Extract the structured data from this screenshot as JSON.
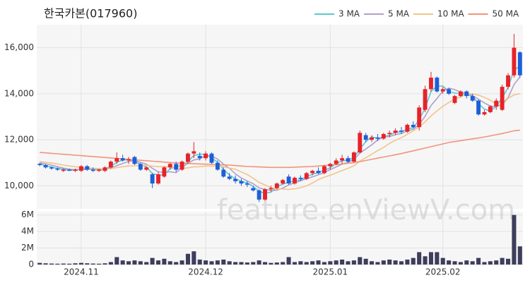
{
  "chart_data": {
    "type": "candlestick",
    "title": "한국카본(017960)",
    "watermark": "feature.enViewV.com",
    "legend": "top-right",
    "up_color": "#e8222a",
    "down_color": "#1d5fd9",
    "volume_color": "#3d3d5c",
    "open": [
      10950,
      10900,
      10800,
      10750,
      10650,
      10700,
      10650,
      10650,
      10850,
      10700,
      10650,
      10650,
      10800,
      11050,
      11200,
      11100,
      11250,
      10950,
      10700,
      10500,
      10100,
      10400,
      10800,
      10950,
      10700,
      11050,
      11400,
      11300,
      11200,
      11400,
      11000,
      10700,
      10400,
      10300,
      10200,
      10100,
      9900,
      9800,
      9400,
      9850,
      9900,
      10100,
      10400,
      10100,
      10350,
      10300,
      10550,
      10650,
      10550,
      10850,
      10950,
      11100,
      11200,
      11050,
      11450,
      12200,
      12000,
      12100,
      12050,
      12250,
      12300,
      12400,
      12350,
      12650,
      12550,
      13300,
      14200,
      14700,
      14100,
      14200,
      13600,
      13900,
      14100,
      13900,
      13700,
      13100,
      13200,
      13450,
      13300,
      14300,
      14800,
      15800
    ],
    "high": [
      11000,
      10950,
      10850,
      10800,
      10750,
      10750,
      10750,
      10900,
      10900,
      10800,
      10750,
      10850,
      11100,
      11450,
      11350,
      11250,
      11300,
      11000,
      10850,
      10550,
      10600,
      10850,
      11000,
      11050,
      11100,
      11450,
      11900,
      11450,
      11500,
      11450,
      11100,
      10800,
      10550,
      10450,
      10300,
      10200,
      10000,
      9850,
      9900,
      10000,
      10150,
      10300,
      10500,
      10400,
      10450,
      10600,
      10700,
      10800,
      10900,
      11000,
      11200,
      11350,
      11300,
      11500,
      12400,
      12300,
      12200,
      12250,
      12300,
      12400,
      12500,
      12550,
      12700,
      12800,
      13500,
      14350,
      14950,
      14750,
      14300,
      14250,
      13950,
      14150,
      14150,
      14000,
      13750,
      13300,
      13500,
      13800,
      14400,
      14900,
      16600,
      15850
    ],
    "low": [
      10850,
      10750,
      10700,
      10650,
      10600,
      10650,
      10600,
      10600,
      10650,
      10600,
      10600,
      10600,
      10750,
      10950,
      11050,
      10950,
      10900,
      10650,
      10650,
      9900,
      10050,
      10350,
      10700,
      10600,
      10650,
      10950,
      11200,
      11100,
      11100,
      10950,
      10650,
      10350,
      10250,
      10100,
      10000,
      9950,
      9750,
      9300,
      9350,
      9750,
      9850,
      10050,
      10050,
      10050,
      10200,
      10250,
      10450,
      10500,
      10500,
      10700,
      10900,
      10950,
      11000,
      11000,
      11400,
      11900,
      11900,
      11950,
      12000,
      12100,
      12200,
      12250,
      12300,
      12500,
      12400,
      13200,
      14100,
      14050,
      14000,
      13950,
      13550,
      13850,
      13800,
      13650,
      13050,
      13050,
      13150,
      13300,
      13250,
      14200,
      14700,
      14700
    ],
    "close": [
      10900,
      10800,
      10750,
      10700,
      10700,
      10650,
      10700,
      10850,
      10700,
      10650,
      10700,
      10800,
      11050,
      11200,
      11100,
      11150,
      10950,
      10700,
      10800,
      10100,
      10500,
      10800,
      10950,
      10700,
      11050,
      11400,
      11500,
      11200,
      11400,
      11000,
      10700,
      10400,
      10300,
      10200,
      10100,
      10050,
      9800,
      9400,
      9850,
      9900,
      10100,
      10250,
      10100,
      10350,
      10300,
      10550,
      10650,
      10550,
      10850,
      10950,
      11100,
      11200,
      11050,
      11450,
      12300,
      12000,
      12100,
      12050,
      12250,
      12300,
      12400,
      12350,
      12650,
      12550,
      13400,
      14200,
      14700,
      14100,
      14200,
      14000,
      13900,
      14100,
      13900,
      13700,
      13100,
      13200,
      13450,
      13700,
      14300,
      14800,
      16000,
      14800
    ],
    "volume": [
      200000,
      150000,
      120000,
      100000,
      120000,
      100000,
      150000,
      200000,
      150000,
      120000,
      100000,
      150000,
      300000,
      900000,
      500000,
      400000,
      500000,
      400000,
      300000,
      800000,
      500000,
      700000,
      400000,
      300000,
      500000,
      1300000,
      1600000,
      600000,
      500000,
      400000,
      500000,
      600000,
      400000,
      300000,
      300000,
      250000,
      300000,
      500000,
      300000,
      200000,
      250000,
      300000,
      900000,
      300000,
      400000,
      300000,
      400000,
      500000,
      300000,
      400000,
      500000,
      600000,
      400000,
      500000,
      900000,
      700000,
      400000,
      300000,
      500000,
      600000,
      500000,
      400000,
      600000,
      800000,
      1500000,
      1000000,
      1500000,
      1500000,
      800000,
      500000,
      400000,
      300000,
      500000,
      400000,
      800000,
      300000,
      400000,
      500000,
      800000,
      700000,
      6000000,
      2200000
    ],
    "ma": [
      {
        "name": "3 MA",
        "color": "#5bc8d0",
        "values": [
          10950,
          10870,
          10820,
          10750,
          10720,
          10680,
          10680,
          10730,
          10750,
          10730,
          10680,
          10720,
          10850,
          11020,
          11120,
          11150,
          11070,
          10930,
          10820,
          10530,
          10470,
          10470,
          10750,
          10820,
          10900,
          11050,
          11320,
          11370,
          11370,
          11200,
          11030,
          10700,
          10470,
          10300,
          10200,
          10120,
          9980,
          9750,
          9680,
          9720,
          9950,
          10080,
          10150,
          10230,
          10250,
          10400,
          10500,
          10580,
          10680,
          10780,
          10970,
          11080,
          11120,
          11230,
          11600,
          11920,
          12130,
          12050,
          12130,
          12200,
          12320,
          12350,
          12470,
          12520,
          12870,
          13380,
          14100,
          14330,
          14330,
          14100,
          14030,
          14000,
          13970,
          13900,
          13570,
          13330,
          13250,
          13450,
          13820,
          14270,
          15030,
          15200
        ]
      },
      {
        "name": "5 MA",
        "color": "#b09fc9",
        "values": [
          11000,
          10950,
          10900,
          10830,
          10770,
          10720,
          10700,
          10700,
          10720,
          10730,
          10720,
          10740,
          10780,
          10880,
          10970,
          11060,
          11090,
          11020,
          10940,
          10760,
          10610,
          10580,
          10610,
          10570,
          10800,
          10980,
          11120,
          11170,
          11310,
          11300,
          11160,
          10940,
          10760,
          10520,
          10340,
          10210,
          10090,
          9910,
          9840,
          9800,
          9810,
          9900,
          10040,
          10130,
          10220,
          10310,
          10390,
          10480,
          10580,
          10700,
          10820,
          10940,
          11020,
          11150,
          11420,
          11600,
          11780,
          11990,
          12140,
          12140,
          12220,
          12270,
          12390,
          12450,
          12670,
          13020,
          13490,
          13790,
          14120,
          14240,
          14180,
          14060,
          14020,
          13920,
          13760,
          13600,
          13470,
          13430,
          13550,
          13830,
          14400,
          14730
        ]
      },
      {
        "name": "10 MA",
        "color": "#f2c48a",
        "values": [
          11050,
          11020,
          10990,
          10950,
          10900,
          10860,
          10830,
          10800,
          10780,
          10760,
          10740,
          10730,
          10740,
          10790,
          10830,
          10860,
          10870,
          10880,
          10890,
          10850,
          10830,
          10830,
          10820,
          10770,
          10760,
          10780,
          10820,
          10830,
          10860,
          10850,
          10870,
          10830,
          10770,
          10720,
          10600,
          10490,
          10330,
          10150,
          10040,
          9920,
          9860,
          9860,
          9840,
          9870,
          9920,
          10000,
          10120,
          10270,
          10370,
          10460,
          10560,
          10660,
          10760,
          10870,
          11070,
          11220,
          11370,
          11530,
          11670,
          11840,
          11980,
          12090,
          12240,
          12390,
          12560,
          12780,
          13040,
          13250,
          13450,
          13620,
          13770,
          13860,
          13990,
          14000,
          13940,
          13840,
          13720,
          13530,
          13500,
          13800,
          13950,
          14000
        ]
      },
      {
        "name": "50 MA",
        "color": "#f0957a",
        "values": [
          11450,
          11430,
          11410,
          11390,
          11370,
          11350,
          11330,
          11310,
          11290,
          11270,
          11250,
          11230,
          11210,
          11190,
          11170,
          11150,
          11130,
          11110,
          11090,
          11070,
          11050,
          11030,
          11010,
          10990,
          10980,
          10970,
          10960,
          10950,
          10940,
          10930,
          10920,
          10910,
          10900,
          10880,
          10860,
          10840,
          10830,
          10820,
          10810,
          10800,
          10800,
          10800,
          10800,
          10810,
          10820,
          10830,
          10840,
          10860,
          10880,
          10900,
          10920,
          10950,
          10980,
          11010,
          11050,
          11100,
          11150,
          11200,
          11250,
          11300,
          11350,
          11400,
          11460,
          11520,
          11580,
          11640,
          11700,
          11760,
          11820,
          11880,
          11920,
          11960,
          12000,
          12040,
          12080,
          12120,
          12170,
          12220,
          12270,
          12330,
          12390,
          12420
        ]
      }
    ],
    "ylim": [
      9000,
      17000
    ],
    "yticks": [
      {
        "value": 10000,
        "label": "10,000"
      },
      {
        "value": 12000,
        "label": "12,000"
      },
      {
        "value": 14000,
        "label": "14,000"
      },
      {
        "value": 16000,
        "label": "16,000"
      }
    ],
    "volume_ylim": [
      0,
      6400000
    ],
    "volume_yticks": [
      {
        "value": 0,
        "label": "0"
      },
      {
        "value": 2000000,
        "label": "2M"
      },
      {
        "value": 4000000,
        "label": "4M"
      },
      {
        "value": 6000000,
        "label": "6M"
      }
    ],
    "xticks": [
      {
        "value": 7,
        "label": "2024.11"
      },
      {
        "value": 28,
        "label": "2024.12"
      },
      {
        "value": 49,
        "label": "2025.01"
      },
      {
        "value": 68,
        "label": "2025.02"
      }
    ],
    "grid": true
  }
}
